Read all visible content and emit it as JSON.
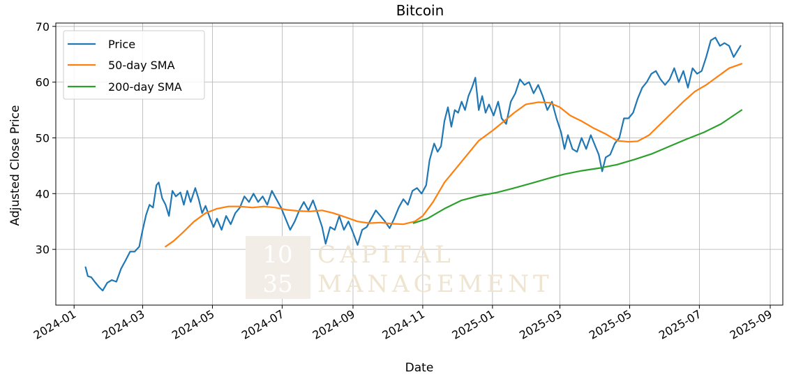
{
  "watermark": {
    "box_top": "10",
    "box_bottom": "35",
    "line1": "CAPITAL",
    "line2": "MANAGEMENT"
  },
  "chart_data": {
    "type": "line",
    "title": "Bitcoin",
    "xlabel": "Date",
    "ylabel": "Adjusted Close Price",
    "x_ticks": [
      "2024-01",
      "2024-03",
      "2024-05",
      "2024-07",
      "2024-09",
      "2024-11",
      "2025-01",
      "2025-03",
      "2025-05",
      "2025-07",
      "2025-09"
    ],
    "y_ticks": [
      30,
      40,
      50,
      60,
      70
    ],
    "xlim": [
      "2023-12-16",
      "2025-09-12"
    ],
    "ylim": [
      20.0,
      70.6
    ],
    "grid": true,
    "legend_position": "top-left",
    "series": [
      {
        "name": "Price",
        "color": "#1f77b4",
        "points": [
          [
            "2024-01-11",
            26.8
          ],
          [
            "2024-01-13",
            25.2
          ],
          [
            "2024-01-16",
            25.0
          ],
          [
            "2024-01-19",
            24.2
          ],
          [
            "2024-01-23",
            23.2
          ],
          [
            "2024-01-26",
            22.6
          ],
          [
            "2024-01-30",
            24.0
          ],
          [
            "2024-02-03",
            24.5
          ],
          [
            "2024-02-07",
            24.2
          ],
          [
            "2024-02-11",
            26.5
          ],
          [
            "2024-02-15",
            28.0
          ],
          [
            "2024-02-19",
            29.6
          ],
          [
            "2024-02-23",
            29.6
          ],
          [
            "2024-02-27",
            30.5
          ],
          [
            "2024-03-01",
            33.5
          ],
          [
            "2024-03-04",
            36.2
          ],
          [
            "2024-03-07",
            38.0
          ],
          [
            "2024-03-10",
            37.5
          ],
          [
            "2024-03-13",
            41.5
          ],
          [
            "2024-03-15",
            42.0
          ],
          [
            "2024-03-18",
            39.2
          ],
          [
            "2024-03-21",
            38.0
          ],
          [
            "2024-03-24",
            36.0
          ],
          [
            "2024-03-27",
            40.5
          ],
          [
            "2024-03-30",
            39.5
          ],
          [
            "2024-04-03",
            40.2
          ],
          [
            "2024-04-06",
            38.0
          ],
          [
            "2024-04-09",
            40.5
          ],
          [
            "2024-04-12",
            38.5
          ],
          [
            "2024-04-16",
            41.0
          ],
          [
            "2024-04-19",
            39.0
          ],
          [
            "2024-04-22",
            36.5
          ],
          [
            "2024-04-25",
            37.8
          ],
          [
            "2024-04-29",
            35.5
          ],
          [
            "2024-05-02",
            34.0
          ],
          [
            "2024-05-05",
            35.5
          ],
          [
            "2024-05-09",
            33.5
          ],
          [
            "2024-05-13",
            36.0
          ],
          [
            "2024-05-17",
            34.5
          ],
          [
            "2024-05-21",
            36.5
          ],
          [
            "2024-05-25",
            37.5
          ],
          [
            "2024-05-29",
            39.5
          ],
          [
            "2024-06-02",
            38.5
          ],
          [
            "2024-06-06",
            40.0
          ],
          [
            "2024-06-10",
            38.5
          ],
          [
            "2024-06-14",
            39.5
          ],
          [
            "2024-06-18",
            38.0
          ],
          [
            "2024-06-22",
            40.5
          ],
          [
            "2024-06-26",
            39.0
          ],
          [
            "2024-06-30",
            37.5
          ],
          [
            "2024-07-04",
            35.5
          ],
          [
            "2024-07-08",
            33.5
          ],
          [
            "2024-07-12",
            35.0
          ],
          [
            "2024-07-16",
            37.0
          ],
          [
            "2024-07-20",
            38.5
          ],
          [
            "2024-07-24",
            37.0
          ],
          [
            "2024-07-28",
            38.8
          ],
          [
            "2024-08-01",
            36.5
          ],
          [
            "2024-08-05",
            34.0
          ],
          [
            "2024-08-08",
            31.0
          ],
          [
            "2024-08-12",
            34.0
          ],
          [
            "2024-08-16",
            33.5
          ],
          [
            "2024-08-20",
            36.0
          ],
          [
            "2024-08-24",
            33.5
          ],
          [
            "2024-08-28",
            35.0
          ],
          [
            "2024-09-01",
            33.0
          ],
          [
            "2024-09-05",
            30.8
          ],
          [
            "2024-09-09",
            33.5
          ],
          [
            "2024-09-13",
            34.0
          ],
          [
            "2024-09-17",
            35.5
          ],
          [
            "2024-09-21",
            37.0
          ],
          [
            "2024-09-25",
            36.0
          ],
          [
            "2024-09-29",
            35.0
          ],
          [
            "2024-10-03",
            33.8
          ],
          [
            "2024-10-07",
            35.5
          ],
          [
            "2024-10-11",
            37.5
          ],
          [
            "2024-10-15",
            39.0
          ],
          [
            "2024-10-19",
            38.0
          ],
          [
            "2024-10-23",
            40.5
          ],
          [
            "2024-10-27",
            41.0
          ],
          [
            "2024-10-31",
            40.0
          ],
          [
            "2024-11-04",
            41.5
          ],
          [
            "2024-11-07",
            46.0
          ],
          [
            "2024-11-11",
            49.0
          ],
          [
            "2024-11-14",
            47.5
          ],
          [
            "2024-11-17",
            48.5
          ],
          [
            "2024-11-20",
            53.0
          ],
          [
            "2024-11-23",
            55.5
          ],
          [
            "2024-11-26",
            52.0
          ],
          [
            "2024-11-29",
            55.0
          ],
          [
            "2024-12-02",
            54.5
          ],
          [
            "2024-12-05",
            56.5
          ],
          [
            "2024-12-08",
            55.0
          ],
          [
            "2024-12-11",
            57.5
          ],
          [
            "2024-12-14",
            59.0
          ],
          [
            "2024-12-17",
            60.8
          ],
          [
            "2024-12-20",
            55.0
          ],
          [
            "2024-12-23",
            57.5
          ],
          [
            "2024-12-26",
            54.5
          ],
          [
            "2024-12-29",
            56.0
          ],
          [
            "2025-01-02",
            54.0
          ],
          [
            "2025-01-06",
            56.5
          ],
          [
            "2025-01-09",
            53.5
          ],
          [
            "2025-01-13",
            52.5
          ],
          [
            "2025-01-17",
            56.5
          ],
          [
            "2025-01-21",
            58.0
          ],
          [
            "2025-01-25",
            60.5
          ],
          [
            "2025-01-29",
            59.5
          ],
          [
            "2025-02-02",
            60.0
          ],
          [
            "2025-02-06",
            58.0
          ],
          [
            "2025-02-10",
            59.5
          ],
          [
            "2025-02-14",
            57.5
          ],
          [
            "2025-02-18",
            55.0
          ],
          [
            "2025-02-22",
            56.5
          ],
          [
            "2025-02-26",
            53.5
          ],
          [
            "2025-03-02",
            51.0
          ],
          [
            "2025-03-05",
            48.0
          ],
          [
            "2025-03-08",
            50.5
          ],
          [
            "2025-03-12",
            48.0
          ],
          [
            "2025-03-16",
            47.5
          ],
          [
            "2025-03-20",
            50.0
          ],
          [
            "2025-03-24",
            48.0
          ],
          [
            "2025-03-28",
            50.5
          ],
          [
            "2025-04-01",
            48.5
          ],
          [
            "2025-04-04",
            47.0
          ],
          [
            "2025-04-07",
            44.0
          ],
          [
            "2025-04-10",
            46.5
          ],
          [
            "2025-04-14",
            47.0
          ],
          [
            "2025-04-18",
            49.0
          ],
          [
            "2025-04-22",
            50.0
          ],
          [
            "2025-04-26",
            53.5
          ],
          [
            "2025-04-30",
            53.5
          ],
          [
            "2025-05-04",
            54.5
          ],
          [
            "2025-05-08",
            57.0
          ],
          [
            "2025-05-12",
            59.0
          ],
          [
            "2025-05-16",
            60.0
          ],
          [
            "2025-05-20",
            61.5
          ],
          [
            "2025-05-24",
            62.0
          ],
          [
            "2025-05-28",
            60.5
          ],
          [
            "2025-06-01",
            59.5
          ],
          [
            "2025-06-05",
            60.5
          ],
          [
            "2025-06-09",
            62.5
          ],
          [
            "2025-06-13",
            60.0
          ],
          [
            "2025-06-17",
            62.0
          ],
          [
            "2025-06-21",
            59.0
          ],
          [
            "2025-06-25",
            62.5
          ],
          [
            "2025-06-29",
            61.5
          ],
          [
            "2025-07-03",
            62.0
          ],
          [
            "2025-07-07",
            64.5
          ],
          [
            "2025-07-11",
            67.5
          ],
          [
            "2025-07-15",
            68.0
          ],
          [
            "2025-07-19",
            66.5
          ],
          [
            "2025-07-23",
            67.0
          ],
          [
            "2025-07-27",
            66.5
          ],
          [
            "2025-07-31",
            64.5
          ],
          [
            "2025-08-03",
            65.5
          ],
          [
            "2025-08-06",
            66.5
          ]
        ]
      },
      {
        "name": "50-day SMA",
        "color": "#ff7f0e",
        "points": [
          [
            "2024-03-21",
            30.5
          ],
          [
            "2024-03-28",
            31.5
          ],
          [
            "2024-04-05",
            33.0
          ],
          [
            "2024-04-15",
            35.0
          ],
          [
            "2024-04-25",
            36.5
          ],
          [
            "2024-05-05",
            37.3
          ],
          [
            "2024-05-15",
            37.7
          ],
          [
            "2024-05-25",
            37.7
          ],
          [
            "2024-06-05",
            37.5
          ],
          [
            "2024-06-15",
            37.7
          ],
          [
            "2024-06-25",
            37.5
          ],
          [
            "2024-07-05",
            37.1
          ],
          [
            "2024-07-15",
            36.9
          ],
          [
            "2024-07-25",
            36.8
          ],
          [
            "2024-08-05",
            37.0
          ],
          [
            "2024-08-15",
            36.5
          ],
          [
            "2024-08-25",
            35.8
          ],
          [
            "2024-09-05",
            35.0
          ],
          [
            "2024-09-15",
            34.7
          ],
          [
            "2024-09-25",
            34.8
          ],
          [
            "2024-10-05",
            34.6
          ],
          [
            "2024-10-15",
            34.5
          ],
          [
            "2024-10-25",
            35.0
          ],
          [
            "2024-11-01",
            36.0
          ],
          [
            "2024-11-10",
            38.5
          ],
          [
            "2024-11-20",
            42.0
          ],
          [
            "2024-11-30",
            44.5
          ],
          [
            "2024-12-10",
            47.0
          ],
          [
            "2024-12-20",
            49.5
          ],
          [
            "2025-01-01",
            51.3
          ],
          [
            "2025-01-10",
            52.8
          ],
          [
            "2025-01-20",
            54.5
          ],
          [
            "2025-01-30",
            56.0
          ],
          [
            "2025-02-10",
            56.4
          ],
          [
            "2025-02-20",
            56.3
          ],
          [
            "2025-03-01",
            55.5
          ],
          [
            "2025-03-10",
            54.0
          ],
          [
            "2025-03-20",
            53.0
          ],
          [
            "2025-03-30",
            51.8
          ],
          [
            "2025-04-10",
            50.7
          ],
          [
            "2025-04-20",
            49.5
          ],
          [
            "2025-04-30",
            49.3
          ],
          [
            "2025-05-08",
            49.4
          ],
          [
            "2025-05-18",
            50.5
          ],
          [
            "2025-05-28",
            52.5
          ],
          [
            "2025-06-07",
            54.5
          ],
          [
            "2025-06-17",
            56.5
          ],
          [
            "2025-06-27",
            58.3
          ],
          [
            "2025-07-07",
            59.5
          ],
          [
            "2025-07-17",
            61.0
          ],
          [
            "2025-07-27",
            62.5
          ],
          [
            "2025-08-07",
            63.3
          ]
        ]
      },
      {
        "name": "200-day SMA",
        "color": "#2ca02c",
        "points": [
          [
            "2024-10-24",
            34.7
          ],
          [
            "2024-11-05",
            35.5
          ],
          [
            "2024-11-20",
            37.3
          ],
          [
            "2024-12-05",
            38.8
          ],
          [
            "2024-12-20",
            39.6
          ],
          [
            "2025-01-05",
            40.2
          ],
          [
            "2025-01-20",
            41.0
          ],
          [
            "2025-02-05",
            41.9
          ],
          [
            "2025-02-20",
            42.8
          ],
          [
            "2025-03-05",
            43.5
          ],
          [
            "2025-03-20",
            44.1
          ],
          [
            "2025-04-05",
            44.6
          ],
          [
            "2025-04-20",
            45.2
          ],
          [
            "2025-05-05",
            46.1
          ],
          [
            "2025-05-20",
            47.1
          ],
          [
            "2025-06-05",
            48.5
          ],
          [
            "2025-06-20",
            49.8
          ],
          [
            "2025-07-05",
            51.0
          ],
          [
            "2025-07-20",
            52.5
          ],
          [
            "2025-08-07",
            55.0
          ]
        ]
      }
    ]
  }
}
